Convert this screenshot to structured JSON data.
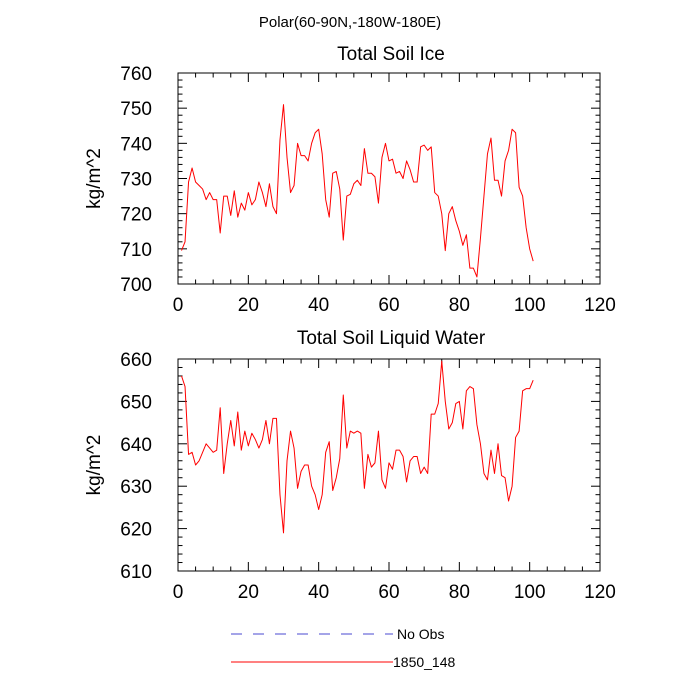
{
  "figure_title": "Polar(60-90N,-180W-180E)",
  "chart_data": [
    {
      "type": "line",
      "title": "Total Soil Ice",
      "xlabel": "",
      "ylabel": "kg/m^2",
      "xlim": [
        0,
        120
      ],
      "ylim": [
        700,
        760
      ],
      "xticks": [
        "0",
        "20",
        "40",
        "60",
        "80",
        "100",
        "120"
      ],
      "yticks": [
        "700",
        "710",
        "720",
        "730",
        "740",
        "750",
        "760"
      ],
      "grid": false,
      "series": [
        {
          "name": "1850_148",
          "color": "#ff0000",
          "x": [
            1,
            2,
            3,
            4,
            5,
            6,
            7,
            8,
            9,
            10,
            11,
            12,
            13,
            14,
            15,
            16,
            17,
            18,
            19,
            20,
            21,
            22,
            23,
            24,
            25,
            26,
            27,
            28,
            29,
            30,
            31,
            32,
            33,
            34,
            35,
            36,
            37,
            38,
            39,
            40,
            41,
            42,
            43,
            44,
            45,
            46,
            47,
            48,
            49,
            50,
            51,
            52,
            53,
            54,
            55,
            56,
            57,
            58,
            59,
            60,
            61,
            62,
            63,
            64,
            65,
            66,
            67,
            68,
            69,
            70,
            71,
            72,
            73,
            74,
            75,
            76,
            77,
            78,
            79,
            80,
            81,
            82,
            83,
            84,
            85,
            86,
            87,
            88,
            89,
            90,
            91,
            92,
            93,
            94,
            95,
            96,
            97,
            98,
            99,
            100,
            101
          ],
          "y": [
            709.5,
            712,
            729,
            733,
            729,
            728,
            727,
            724,
            726,
            724,
            724,
            714.5,
            725,
            725,
            719.5,
            726.5,
            719,
            723,
            721,
            726,
            722.5,
            724,
            729,
            726,
            722,
            728.5,
            722,
            720,
            741,
            751,
            736,
            726,
            728,
            740,
            736.5,
            736.5,
            735,
            740,
            743,
            744,
            737,
            724,
            719,
            731.5,
            732,
            727,
            712.5,
            725,
            725.5,
            728.5,
            729.5,
            728,
            738.5,
            731.5,
            731.5,
            730.5,
            723,
            736,
            740,
            735,
            735.5,
            731.5,
            732,
            730,
            735,
            732.5,
            729,
            729,
            739,
            739.5,
            738,
            739,
            726,
            725,
            720,
            709.5,
            720,
            722,
            718,
            715,
            711,
            714,
            704.5,
            704.5,
            702,
            713,
            725,
            737,
            741.5,
            729.5,
            729.5,
            725,
            735,
            738,
            744,
            743,
            727.5,
            725,
            716,
            710,
            706.5
          ]
        }
      ]
    },
    {
      "type": "line",
      "title": "Total Soil Liquid Water",
      "xlabel": "",
      "ylabel": "kg/m^2",
      "xlim": [
        0,
        120
      ],
      "ylim": [
        610,
        660
      ],
      "xticks": [
        "0",
        "20",
        "40",
        "60",
        "80",
        "100",
        "120"
      ],
      "yticks": [
        "610",
        "620",
        "630",
        "640",
        "650",
        "660"
      ],
      "grid": false,
      "series": [
        {
          "name": "1850_148",
          "color": "#ff0000",
          "x": [
            1,
            2,
            3,
            4,
            5,
            6,
            7,
            8,
            9,
            10,
            11,
            12,
            13,
            14,
            15,
            16,
            17,
            18,
            19,
            20,
            21,
            22,
            23,
            24,
            25,
            26,
            27,
            28,
            29,
            30,
            31,
            32,
            33,
            34,
            35,
            36,
            37,
            38,
            39,
            40,
            41,
            42,
            43,
            44,
            45,
            46,
            47,
            48,
            49,
            50,
            51,
            52,
            53,
            54,
            55,
            56,
            57,
            58,
            59,
            60,
            61,
            62,
            63,
            64,
            65,
            66,
            67,
            68,
            69,
            70,
            71,
            72,
            73,
            74,
            75,
            76,
            77,
            78,
            79,
            80,
            81,
            82,
            83,
            84,
            85,
            86,
            87,
            88,
            89,
            90,
            91,
            92,
            93,
            94,
            95,
            96,
            97,
            98,
            99,
            100,
            101
          ],
          "y": [
            656,
            653.5,
            637.5,
            638,
            635,
            636,
            638,
            640,
            639,
            638,
            638.5,
            648.5,
            633,
            640,
            645.5,
            639.5,
            647.5,
            638.5,
            643,
            639.5,
            642.5,
            641,
            639,
            641,
            645.5,
            640,
            646,
            646,
            628,
            619,
            636,
            643,
            639,
            629.5,
            633.5,
            635,
            635,
            630,
            628,
            624.5,
            628,
            638,
            640.5,
            629,
            632,
            636.5,
            651.5,
            639,
            643,
            642.5,
            643,
            642.5,
            629.5,
            637.5,
            634.5,
            635.5,
            643,
            631.5,
            629.5,
            635.5,
            634,
            638.5,
            638.5,
            637,
            631,
            636,
            637,
            637,
            633,
            634.5,
            633,
            647,
            647,
            649.5,
            659.5,
            650,
            643.5,
            645,
            649.5,
            650,
            643.5,
            652.5,
            653.5,
            653,
            644.5,
            640,
            633,
            631.5,
            638.5,
            633,
            640,
            632.5,
            632,
            626.5,
            630,
            641.5,
            643,
            652.5,
            653,
            653,
            655
          ]
        }
      ]
    }
  ],
  "legend": {
    "placement": "bottom-center",
    "entries": [
      {
        "label": "No Obs",
        "color": "#4a4ad0",
        "dash": true
      },
      {
        "label": "1850_148",
        "color": "#ff0000",
        "dash": false
      }
    ]
  }
}
